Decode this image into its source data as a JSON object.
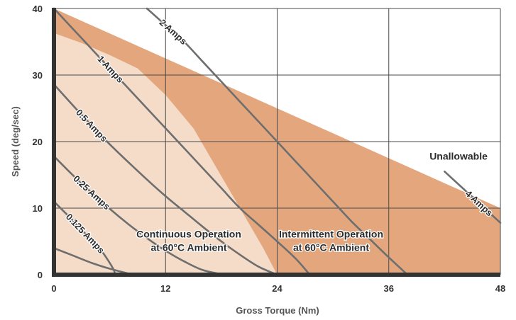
{
  "colors": {
    "continuous": "#f4dcc8",
    "intermittent": "#e4a77d",
    "grid": "#4a4a4a",
    "curve": "#6e6e6e",
    "axis": "#333333"
  },
  "chart_data": {
    "type": "line",
    "xlabel": "Gross Torque (Nm)",
    "ylabel": "Speed (deg/sec)",
    "xlim": [
      0,
      48
    ],
    "ylim": [
      0,
      40
    ],
    "xticks": [
      "0",
      "12",
      "24",
      "36",
      "48"
    ],
    "yticks": [
      "0",
      "10",
      "20",
      "30",
      "40"
    ],
    "grid": true,
    "regions": [
      {
        "name": "Continuous Operation at 60°C Ambient",
        "boundary": [
          [
            0,
            0
          ],
          [
            0,
            36.3
          ],
          [
            3,
            34.8
          ],
          [
            6,
            33
          ],
          [
            9,
            31
          ],
          [
            12,
            27
          ],
          [
            15,
            22
          ],
          [
            17.5,
            16
          ],
          [
            20,
            10
          ],
          [
            22.5,
            4
          ],
          [
            24,
            0
          ]
        ]
      },
      {
        "name": "Intermittent Operation at 60°C Ambient",
        "boundary": [
          [
            0,
            0
          ],
          [
            0,
            40
          ],
          [
            48,
            10
          ],
          [
            48,
            0
          ]
        ]
      }
    ],
    "region_labels": [
      {
        "lines": [
          "Continuous Operation",
          "at 60°C Ambient"
        ],
        "x": 14.5,
        "y": 5.1
      },
      {
        "lines": [
          "Intermittent Operation",
          "at 60°C  Ambient"
        ],
        "x": 29.8,
        "y": 5.1
      },
      {
        "lines": [
          "Unallowable"
        ],
        "x": 43.5,
        "y": 17.8
      }
    ],
    "series": [
      {
        "name": "4 Amps",
        "points": [
          [
            42,
            15.5
          ],
          [
            48,
            7.8
          ]
        ],
        "label_at": 0.4
      },
      {
        "name": "2 Amps",
        "points": [
          [
            10,
            40
          ],
          [
            12,
            37.5
          ],
          [
            14,
            35
          ],
          [
            16,
            32
          ],
          [
            18,
            29
          ],
          [
            20,
            26
          ],
          [
            22,
            23
          ],
          [
            24,
            20
          ],
          [
            26,
            17
          ],
          [
            28,
            14
          ],
          [
            30,
            11
          ],
          [
            32,
            8
          ],
          [
            34,
            5.3
          ],
          [
            36,
            2.6
          ],
          [
            38,
            0
          ]
        ],
        "label_at": 0.05
      },
      {
        "name": "1 Amps",
        "points": [
          [
            0,
            40
          ],
          [
            2,
            37
          ],
          [
            4,
            34
          ],
          [
            6,
            31
          ],
          [
            8,
            28
          ],
          [
            10,
            25
          ],
          [
            12,
            22
          ],
          [
            14,
            19
          ],
          [
            16,
            16
          ],
          [
            18,
            13
          ],
          [
            20,
            10
          ],
          [
            22,
            7.5
          ],
          [
            24,
            5
          ],
          [
            26,
            2.4
          ],
          [
            27.5,
            0
          ]
        ],
        "label_at": 0.18
      },
      {
        "name": "0.5 Amps",
        "points": [
          [
            0,
            28.6
          ],
          [
            2,
            25.5
          ],
          [
            4,
            22.5
          ],
          [
            6,
            19.6
          ],
          [
            8,
            16.9
          ],
          [
            10,
            14.3
          ],
          [
            12,
            11.8
          ],
          [
            14,
            9.5
          ],
          [
            16,
            7.2
          ],
          [
            18,
            5
          ],
          [
            20,
            3
          ],
          [
            22,
            1.2
          ],
          [
            24,
            0
          ]
        ],
        "label_at": 0.12
      },
      {
        "name": "0.25 Amps",
        "points": [
          [
            0,
            17.8
          ],
          [
            2,
            15
          ],
          [
            4,
            12.4
          ],
          [
            6,
            9.9
          ],
          [
            8,
            7.6
          ],
          [
            10,
            5.5
          ],
          [
            12,
            3.6
          ],
          [
            14,
            2
          ],
          [
            16,
            0.7
          ],
          [
            18.3,
            0
          ]
        ],
        "label_at": 0.14
      },
      {
        "name": "0.125 Amps",
        "points": [
          [
            0,
            11
          ],
          [
            1,
            9.6
          ],
          [
            2,
            8.2
          ],
          [
            3,
            6.7
          ],
          [
            4,
            5.3
          ],
          [
            5,
            3.8
          ],
          [
            5.8,
            2.2
          ],
          [
            6.4,
            0.8
          ],
          [
            6.6,
            0
          ]
        ],
        "label_at": 0.2
      },
      {
        "name": "",
        "points": [
          [
            0,
            4
          ],
          [
            2,
            2.9
          ],
          [
            4,
            1.8
          ],
          [
            6,
            0.9
          ],
          [
            8.5,
            0
          ]
        ],
        "label_at": null
      }
    ]
  }
}
